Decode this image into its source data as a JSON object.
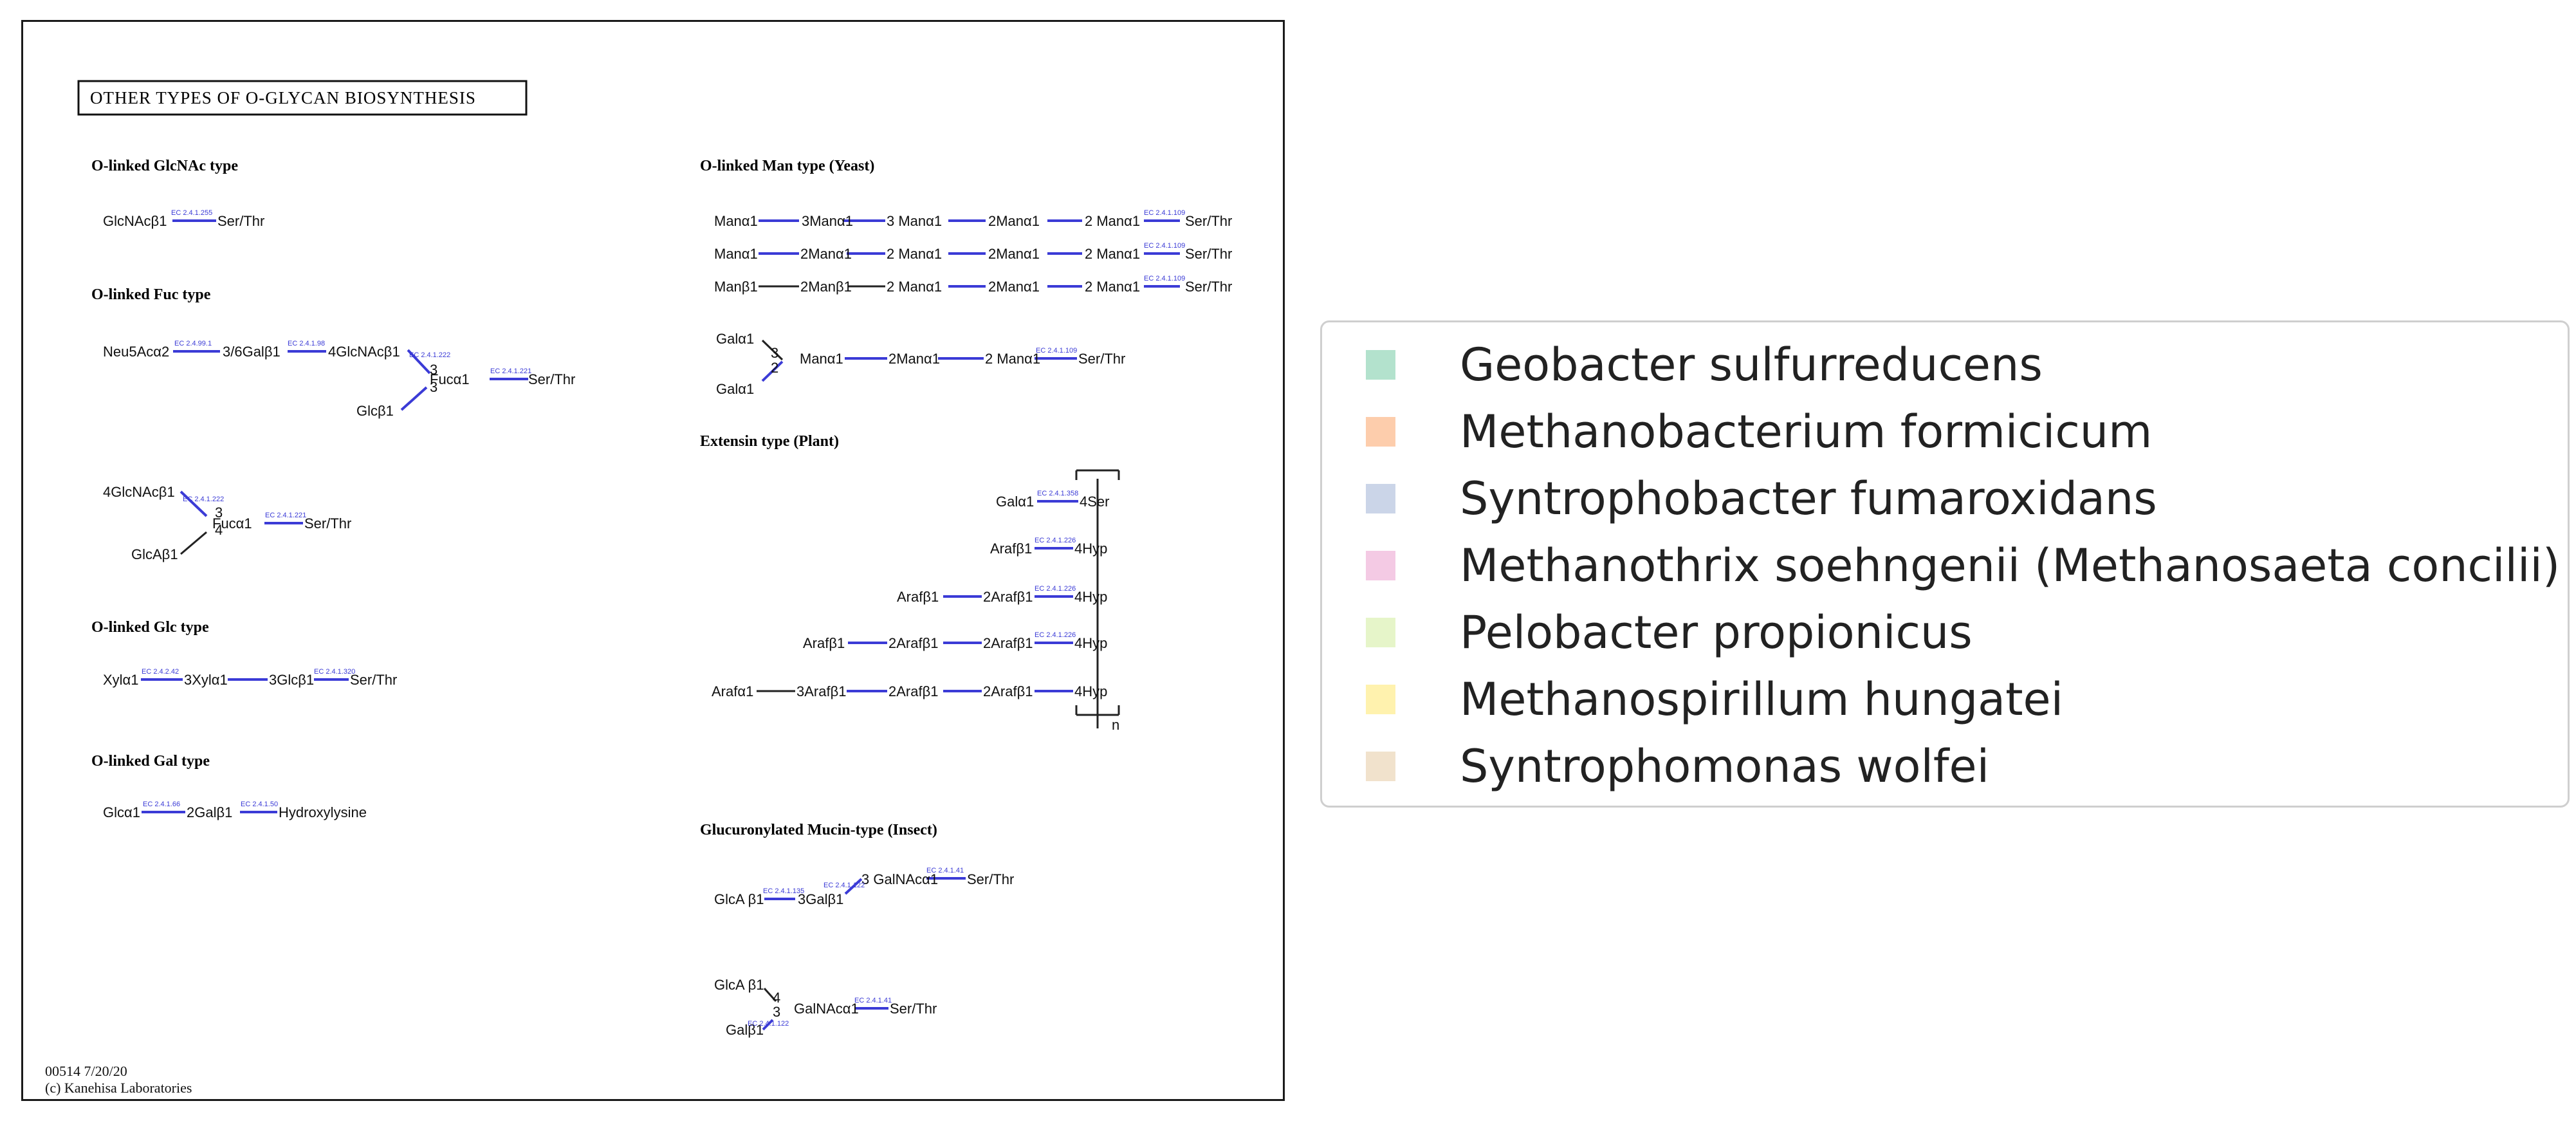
{
  "map": {
    "title": "OTHER TYPES OF O-GLYCAN BIOSYNTHESIS",
    "footer_id": "00514 7/20/20",
    "footer_copyright": "(c) Kanehisa Laboratories",
    "sections": [
      {
        "title": "O-linked GlcNAc type"
      },
      {
        "title": "O-linked Fuc type"
      },
      {
        "title": "O-linked Glc type"
      },
      {
        "title": "O-linked Gal type"
      },
      {
        "title": "O-linked Man type (Yeast)"
      },
      {
        "title": "Extensin type (Plant)"
      },
      {
        "title": "Glucuronylated Mucin-type (Insect)"
      }
    ],
    "labels": [
      "GlcNAcβ1",
      "Ser/Thr",
      "Neu5Acα2",
      "3/6Galβ1",
      "4GlcNAcβ1",
      "Fucα1",
      "Ser/Thr",
      "Glcβ1",
      "4GlcNAcβ1",
      "Fucα1",
      "Ser/Thr",
      "GlcAβ1",
      "Xylα1",
      "3Xylα1",
      "3Glcβ1",
      "Ser/Thr",
      "Glcα1",
      "2Galβ1",
      "Hydroxylysine",
      "Manα1",
      "3Manα1",
      "3 Manα1",
      "2Manα1",
      "2 Manα1",
      "Ser/Thr",
      "Manα1",
      "2Manα1",
      "2 Manα1",
      "2Manα1",
      "2 Manα1",
      "Ser/Thr",
      "Manβ1",
      "2Manβ1",
      "2 Manα1",
      "2Manα1",
      "2 Manα1",
      "Ser/Thr",
      "Galα1",
      "Galα1",
      "Manα1",
      "2Manα1",
      "2 Manα1",
      "Ser/Thr",
      "Galα1",
      "4Ser",
      "Arafβ1",
      "4Hyp",
      "Arafβ1",
      "2Arafβ1",
      "4Hyp",
      "Arafβ1",
      "2Arafβ1",
      "2Arafβ1",
      "4Hyp",
      "Arafα1",
      "3Arafβ1",
      "2Arafβ1",
      "2Arafβ1",
      "4Hyp",
      "n",
      "GlcA β1",
      "3Galβ1",
      "3 GalNAcα1",
      "Ser/Thr",
      "GlcA β1",
      "GalNAcα1",
      "Ser/Thr",
      "Galβ1"
    ],
    "enzymes": [
      "EC 2.4.1.255",
      "EC 2.4.99.1",
      "EC 2.4.1.98",
      "EC 2.4.1.222",
      "EC 2.4.1.221",
      "EC 2.4.1.222",
      "EC 2.4.1.221",
      "EC 2.4.2.42",
      "EC 2.4.1.320",
      "EC 2.4.1.66",
      "EC 2.4.1.50",
      "EC 2.4.1.109",
      "EC 2.4.1.109",
      "EC 2.4.1.109",
      "EC 2.4.1.109",
      "EC 2.4.1.358",
      "EC 2.4.1.226",
      "EC 2.4.1.226",
      "EC 2.4.1.226",
      "EC 2.4.1.135",
      "EC 2.4.1.122",
      "EC 2.4.1.41",
      "EC 2.4.1.122",
      "EC 2.4.1.41"
    ],
    "edge_color": "#3b3bd6",
    "enzyme_color": "#3b3bd6"
  },
  "legend": {
    "items": [
      {
        "label": "Geobacter sulfurreducens",
        "color": "#b3e2cd"
      },
      {
        "label": "Methanobacterium formicicum",
        "color": "#fdcdac"
      },
      {
        "label": "Syntrophobacter fumaroxidans",
        "color": "#cbd5e8"
      },
      {
        "label": "Methanothrix soehngenii (Methanosaeta concilii)",
        "color": "#f4cae4"
      },
      {
        "label": "Pelobacter propionicus",
        "color": "#e6f5c9"
      },
      {
        "label": "Methanospirillum hungatei",
        "color": "#fff2ae"
      },
      {
        "label": "Syntrophomonas wolfei",
        "color": "#f1e2cc"
      }
    ]
  }
}
